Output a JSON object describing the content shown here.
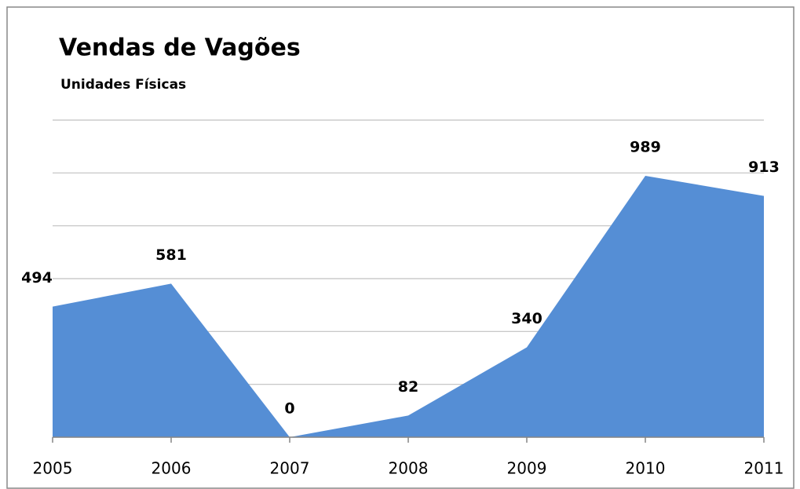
{
  "chart_data": {
    "type": "area",
    "title": "Vendas de Vagões",
    "subtitle": "Unidades Físicas",
    "categories": [
      "2005",
      "2006",
      "2007",
      "2008",
      "2009",
      "2010",
      "2011"
    ],
    "values": [
      494,
      581,
      0,
      82,
      340,
      989,
      913
    ],
    "color": "#558ed5",
    "ylim": [
      0,
      1200
    ],
    "yticks": [
      0,
      200,
      400,
      600,
      800,
      1000,
      1200
    ],
    "grid": true
  }
}
